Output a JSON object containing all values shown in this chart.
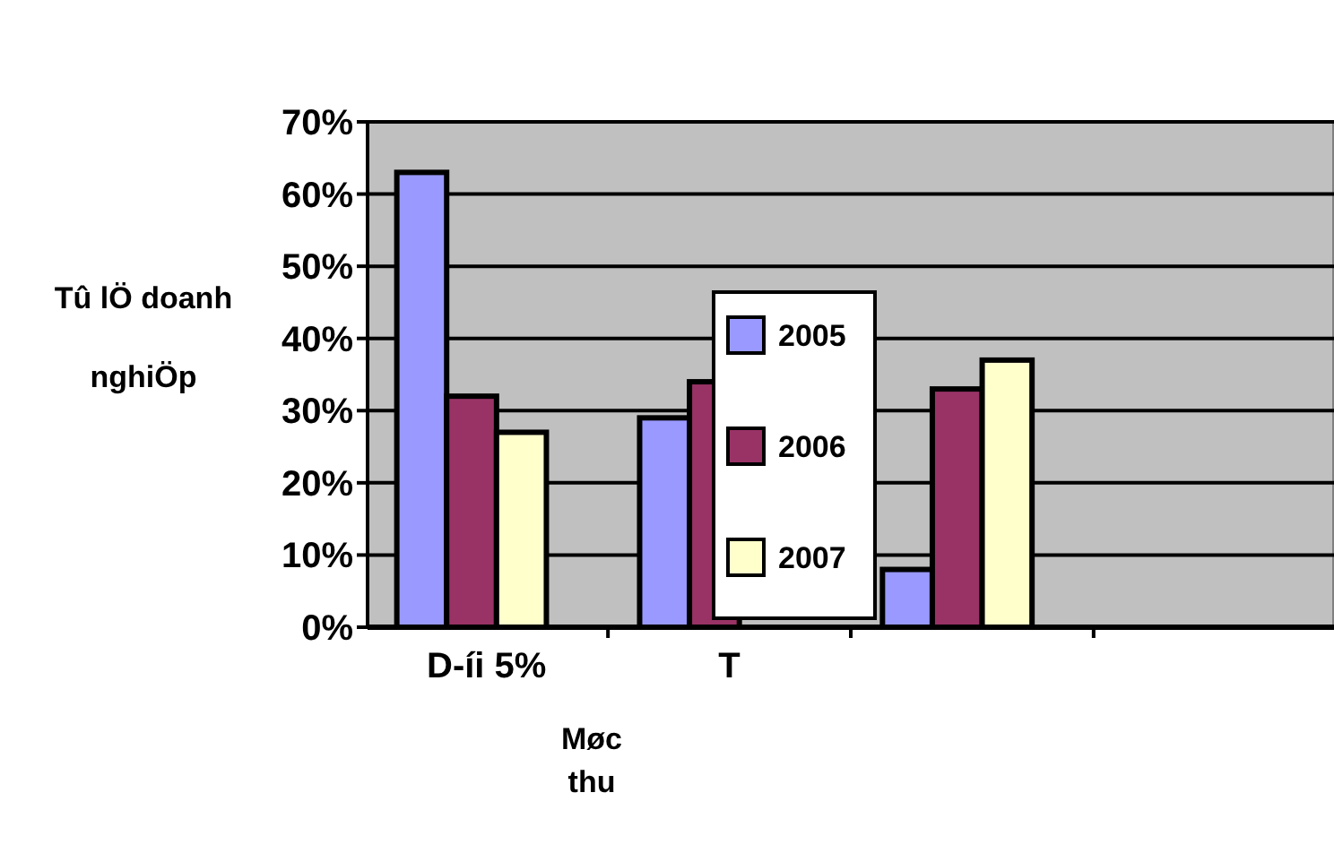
{
  "chart_data": {
    "type": "bar",
    "xlabel": "Møc thu",
    "ylabel": "Tû lÖ doanh nghiÖp",
    "categories": [
      "D-íi 5%",
      "T",
      null,
      null
    ],
    "series": [
      {
        "name": "2005",
        "color": "#9999ff",
        "values": [
          63,
          29,
          8,
          null
        ]
      },
      {
        "name": "2006",
        "color": "#993366",
        "values": [
          32,
          34,
          33,
          null
        ]
      },
      {
        "name": "2007",
        "color": "#ffffcc",
        "values": [
          27,
          null,
          37,
          null
        ]
      }
    ],
    "ylim": [
      0,
      70
    ],
    "yticks": [
      {
        "value": 0,
        "label": "0%"
      },
      {
        "value": 10,
        "label": "10%"
      },
      {
        "value": 20,
        "label": "20%"
      },
      {
        "value": 30,
        "label": "30%"
      },
      {
        "value": 40,
        "label": "40%"
      },
      {
        "value": 50,
        "label": "50%"
      },
      {
        "value": 60,
        "label": "60%"
      },
      {
        "value": 70,
        "label": "70%"
      }
    ],
    "grid": "y",
    "legend": "center"
  }
}
